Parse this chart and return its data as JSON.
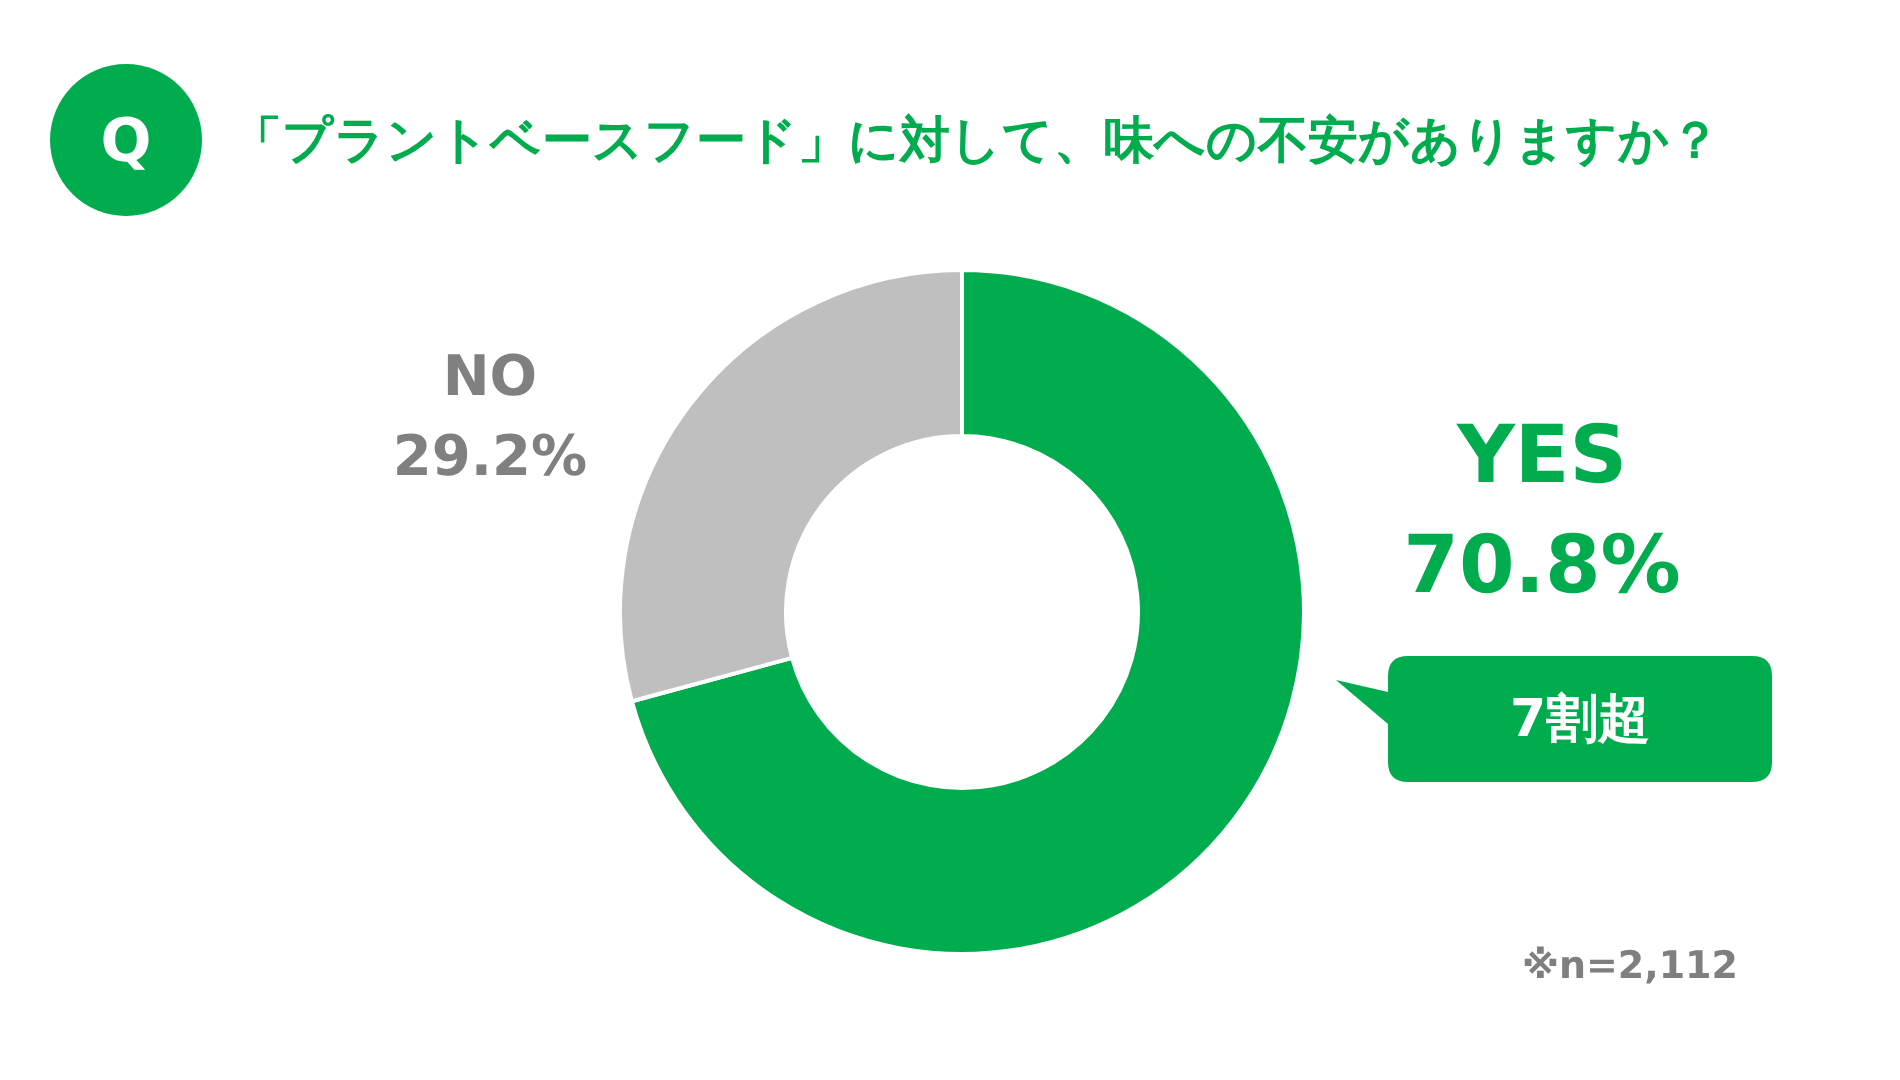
{
  "chart_data": {
    "type": "donut",
    "title": "「プラントベースフード」に対して、味への不安がありますか？",
    "categories": [
      "YES",
      "NO"
    ],
    "values": [
      70.8,
      29.2
    ],
    "value_labels": [
      "70.8%",
      "29.2%"
    ],
    "colors": [
      "#00ac4e",
      "#bfbfbf"
    ],
    "annotations": [
      "Q",
      "7割超",
      "※n=2,112"
    ]
  }
}
